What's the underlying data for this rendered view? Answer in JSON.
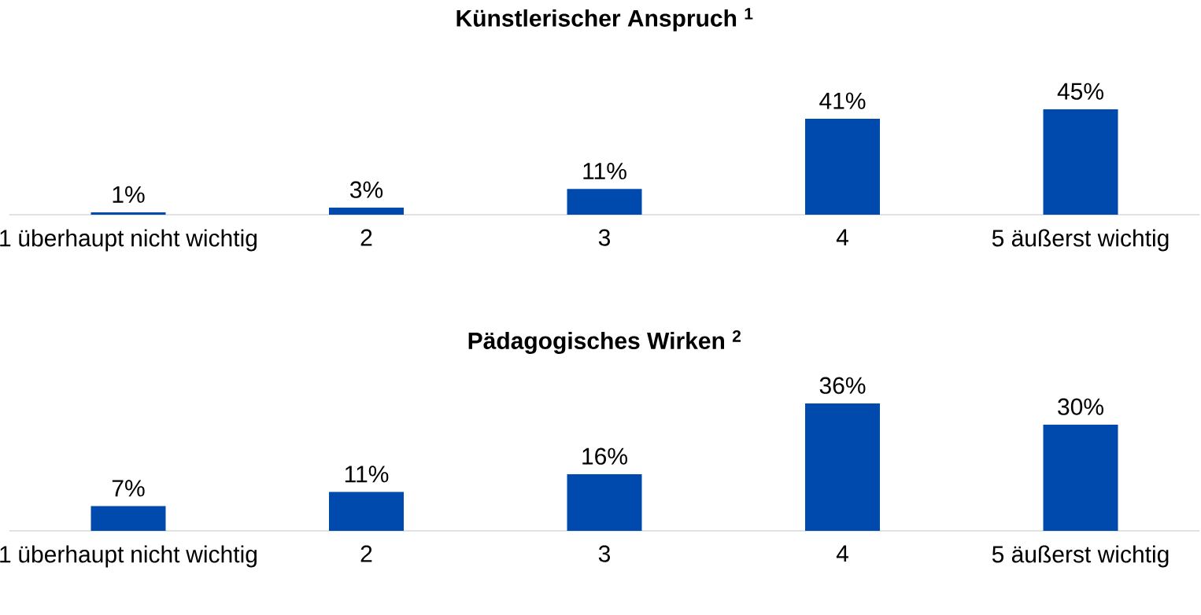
{
  "chart_data": [
    {
      "type": "bar",
      "title": "**Künstlerischer Anspruch $^{1}$**",
      "categories": [
        "1 überhaupt nicht wichtig",
        "2",
        "3",
        "4",
        "5 äußerst wichtig"
      ],
      "values": [
        1,
        3,
        11,
        41,
        45
      ],
      "value_labels": [
        "1%",
        "3%",
        "11%",
        "41%",
        "45%"
      ],
      "color": "#004aad"
    },
    {
      "type": "bar",
      "title": "**Pädagogisches Wirken $^{2}$**",
      "categories": [
        "1 überhaupt nicht wichtig",
        "2",
        "3",
        "4",
        "5 äußerst wichtig"
      ],
      "values": [
        7,
        11,
        16,
        36,
        30
      ],
      "value_labels": [
        "7%",
        "11%",
        "16%",
        "36%",
        "30%"
      ],
      "color": "#004aad"
    }
  ]
}
